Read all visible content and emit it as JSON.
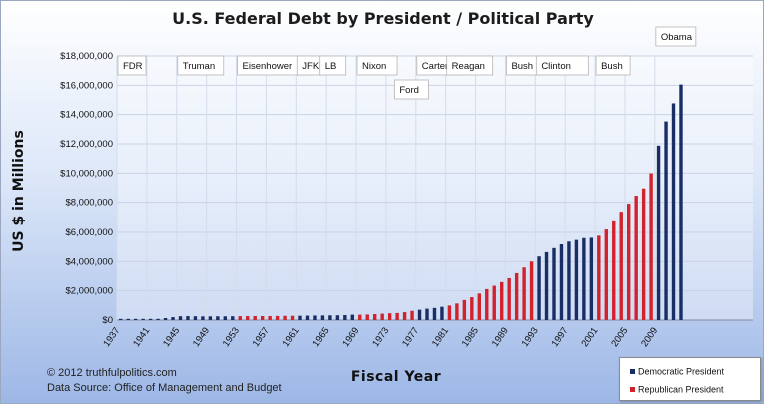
{
  "chart_data": {
    "type": "bar",
    "title": "U.S. Federal Debt by President / Political Party",
    "ylabel": "US $ in Millions",
    "xlabel": "Fiscal Year",
    "ylim": [
      0,
      18000000
    ],
    "y_ticks": [
      "$0",
      "$2,000,000",
      "$4,000,000",
      "$6,000,000",
      "$8,000,000",
      "$10,000,000",
      "$12,000,000",
      "$14,000,000",
      "$16,000,000",
      "$18,000,000"
    ],
    "x_ticks": [
      "1937",
      "1941",
      "1945",
      "1949",
      "1953",
      "1957",
      "1961",
      "1965",
      "1969",
      "1973",
      "1977",
      "1981",
      "1985",
      "1989",
      "1993",
      "1997",
      "2001",
      "2005",
      "2009"
    ],
    "grid": true,
    "legend_position": "bottom-right",
    "colors": {
      "democratic": "#1a2e66",
      "republican": "#d2222c"
    },
    "series": [
      {
        "name": "Democratic President",
        "color_key": "democratic"
      },
      {
        "name": "Republican President",
        "color_key": "republican"
      }
    ],
    "bars": [
      {
        "year": 1937,
        "party": "D",
        "value": 36000
      },
      {
        "year": 1938,
        "party": "D",
        "value": 37000
      },
      {
        "year": 1939,
        "party": "D",
        "value": 40000
      },
      {
        "year": 1940,
        "party": "D",
        "value": 43000
      },
      {
        "year": 1941,
        "party": "D",
        "value": 49000
      },
      {
        "year": 1942,
        "party": "D",
        "value": 72000
      },
      {
        "year": 1943,
        "party": "D",
        "value": 137000
      },
      {
        "year": 1944,
        "party": "D",
        "value": 201000
      },
      {
        "year": 1945,
        "party": "D",
        "value": 259000
      },
      {
        "year": 1946,
        "party": "D",
        "value": 270000
      },
      {
        "year": 1947,
        "party": "D",
        "value": 258000
      },
      {
        "year": 1948,
        "party": "D",
        "value": 252000
      },
      {
        "year": 1949,
        "party": "D",
        "value": 253000
      },
      {
        "year": 1950,
        "party": "D",
        "value": 257000
      },
      {
        "year": 1951,
        "party": "D",
        "value": 255000
      },
      {
        "year": 1952,
        "party": "D",
        "value": 259000
      },
      {
        "year": 1953,
        "party": "R",
        "value": 266000
      },
      {
        "year": 1954,
        "party": "R",
        "value": 271000
      },
      {
        "year": 1955,
        "party": "R",
        "value": 274000
      },
      {
        "year": 1956,
        "party": "R",
        "value": 273000
      },
      {
        "year": 1957,
        "party": "R",
        "value": 272000
      },
      {
        "year": 1958,
        "party": "R",
        "value": 280000
      },
      {
        "year": 1959,
        "party": "R",
        "value": 287000
      },
      {
        "year": 1960,
        "party": "R",
        "value": 291000
      },
      {
        "year": 1961,
        "party": "D",
        "value": 293000
      },
      {
        "year": 1962,
        "party": "D",
        "value": 303000
      },
      {
        "year": 1963,
        "party": "D",
        "value": 310000
      },
      {
        "year": 1964,
        "party": "D",
        "value": 316000
      },
      {
        "year": 1965,
        "party": "D",
        "value": 322000
      },
      {
        "year": 1966,
        "party": "D",
        "value": 328000
      },
      {
        "year": 1967,
        "party": "D",
        "value": 340000
      },
      {
        "year": 1968,
        "party": "D",
        "value": 369000
      },
      {
        "year": 1969,
        "party": "R",
        "value": 366000
      },
      {
        "year": 1970,
        "party": "R",
        "value": 381000
      },
      {
        "year": 1971,
        "party": "R",
        "value": 408000
      },
      {
        "year": 1972,
        "party": "R",
        "value": 436000
      },
      {
        "year": 1973,
        "party": "R",
        "value": 466000
      },
      {
        "year": 1974,
        "party": "R",
        "value": 484000
      },
      {
        "year": 1975,
        "party": "R",
        "value": 542000
      },
      {
        "year": 1976,
        "party": "R",
        "value": 629000
      },
      {
        "year": 1977,
        "party": "D",
        "value": 706000
      },
      {
        "year": 1978,
        "party": "D",
        "value": 776000
      },
      {
        "year": 1979,
        "party": "D",
        "value": 829000
      },
      {
        "year": 1980,
        "party": "D",
        "value": 909000
      },
      {
        "year": 1981,
        "party": "R",
        "value": 995000
      },
      {
        "year": 1982,
        "party": "R",
        "value": 1137000
      },
      {
        "year": 1983,
        "party": "R",
        "value": 1372000
      },
      {
        "year": 1984,
        "party": "R",
        "value": 1565000
      },
      {
        "year": 1985,
        "party": "R",
        "value": 1817000
      },
      {
        "year": 1986,
        "party": "R",
        "value": 2121000
      },
      {
        "year": 1987,
        "party": "R",
        "value": 2346000
      },
      {
        "year": 1988,
        "party": "R",
        "value": 2601000
      },
      {
        "year": 1989,
        "party": "R",
        "value": 2868000
      },
      {
        "year": 1990,
        "party": "R",
        "value": 3206000
      },
      {
        "year": 1991,
        "party": "R",
        "value": 3598000
      },
      {
        "year": 1992,
        "party": "R",
        "value": 4002000
      },
      {
        "year": 1993,
        "party": "D",
        "value": 4351000
      },
      {
        "year": 1994,
        "party": "D",
        "value": 4643000
      },
      {
        "year": 1995,
        "party": "D",
        "value": 4921000
      },
      {
        "year": 1996,
        "party": "D",
        "value": 5181000
      },
      {
        "year": 1997,
        "party": "D",
        "value": 5369000
      },
      {
        "year": 1998,
        "party": "D",
        "value": 5478000
      },
      {
        "year": 1999,
        "party": "D",
        "value": 5606000
      },
      {
        "year": 2000,
        "party": "D",
        "value": 5629000
      },
      {
        "year": 2001,
        "party": "R",
        "value": 5770000
      },
      {
        "year": 2002,
        "party": "R",
        "value": 6198000
      },
      {
        "year": 2003,
        "party": "R",
        "value": 6760000
      },
      {
        "year": 2004,
        "party": "R",
        "value": 7355000
      },
      {
        "year": 2005,
        "party": "R",
        "value": 7905000
      },
      {
        "year": 2006,
        "party": "R",
        "value": 8451000
      },
      {
        "year": 2007,
        "party": "R",
        "value": 8950000
      },
      {
        "year": 2008,
        "party": "R",
        "value": 9986000
      },
      {
        "year": 2009,
        "party": "D",
        "value": 11876000
      },
      {
        "year": 2010,
        "party": "D",
        "value": 13529000
      },
      {
        "year": 2011,
        "party": "D",
        "value": 14764000
      },
      {
        "year": 2012,
        "party": "D",
        "value": 16050000
      }
    ],
    "presidents": [
      {
        "name": "FDR",
        "start_year": 1937,
        "row": 0
      },
      {
        "name": "Truman",
        "start_year": 1945,
        "row": 0
      },
      {
        "name": "Eisenhower",
        "start_year": 1953,
        "row": 0
      },
      {
        "name": "JFK",
        "start_year": 1961,
        "row": 0
      },
      {
        "name": "LB",
        "start_year": 1964,
        "row": 0
      },
      {
        "name": "Nixon",
        "start_year": 1969,
        "row": 0
      },
      {
        "name": "Ford",
        "start_year": 1974,
        "row": 1
      },
      {
        "name": "Carter",
        "start_year": 1977,
        "row": 0
      },
      {
        "name": "Reagan",
        "start_year": 1981,
        "row": 0
      },
      {
        "name": "Bush",
        "start_year": 1989,
        "row": 0
      },
      {
        "name": "Clinton",
        "start_year": 1993,
        "row": 0
      },
      {
        "name": "Bush",
        "start_year": 2001,
        "row": 0
      },
      {
        "name": "Obama",
        "start_year": 2009,
        "row": -1
      }
    ]
  },
  "footer": {
    "copyright": "© 2012  truthfulpolitics.com",
    "source": "Data Source:  Office of Management and Budget"
  },
  "legend": {
    "democratic": "Democratic President",
    "republican": "Republican President"
  }
}
